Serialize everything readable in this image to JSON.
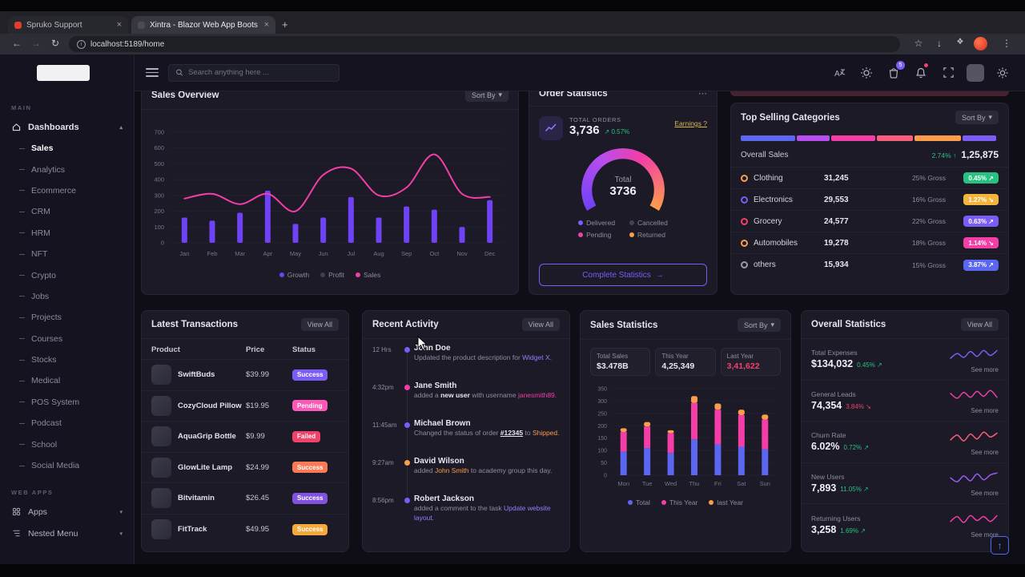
{
  "colors": {
    "accent_purple": "#7c5cf6",
    "bar_purple": "#6f42f5",
    "indigo": "#5b67f1",
    "pink": "#f23ea6",
    "orange": "#fb9d4b",
    "amber": "#f5b43c",
    "green": "#27c281",
    "red": "#f0426b",
    "earnings_yellow": "#d9b64a"
  },
  "browser": {
    "tab1": "Spruko Support",
    "tab2": "Xintra - Blazor Web App Boots",
    "url": "localhost:5189/home"
  },
  "topbar": {
    "search_placeholder": "Search anything here ...",
    "cart_badge": "5"
  },
  "sidebar": {
    "section_main": "MAIN",
    "section_webapps": "WEB APPS",
    "dashboards": "Dashboards",
    "items": [
      "Sales",
      "Analytics",
      "Ecommerce",
      "CRM",
      "HRM",
      "NFT",
      "Crypto",
      "Jobs",
      "Projects",
      "Courses",
      "Stocks",
      "Medical",
      "POS System",
      "Podcast",
      "School",
      "Social Media"
    ],
    "apps": "Apps",
    "nested_menu": "Nested Menu"
  },
  "sales_overview": {
    "title": "Sales Overview",
    "menu_label": "Sort By",
    "legend": [
      {
        "label": "Growth",
        "color": "#6f42f5"
      },
      {
        "label": "Profit",
        "color": "#3f3e52"
      },
      {
        "label": "Sales",
        "color": "#f23ea6"
      }
    ],
    "chart": {
      "type": "combo",
      "categories": [
        "Jan",
        "Feb",
        "Mar",
        "Apr",
        "May",
        "Jun",
        "Jul",
        "Aug",
        "Sep",
        "Oct",
        "Nov",
        "Dec"
      ],
      "bars": [
        160,
        140,
        190,
        330,
        120,
        160,
        290,
        160,
        230,
        210,
        100,
        270
      ],
      "line": [
        280,
        310,
        245,
        310,
        200,
        430,
        470,
        300,
        350,
        560,
        310,
        290
      ],
      "ylim": [
        0,
        700
      ],
      "yticks": [
        0,
        100,
        200,
        300,
        400,
        500,
        600,
        700
      ],
      "bar_color": "#6f42f5",
      "line_color": "#f23ea6"
    }
  },
  "order_statistics": {
    "title": "Order Statistics",
    "total_orders_label": "TOTAL ORDERS",
    "total_orders": "3,736",
    "delta": "↗ 0.57%",
    "earnings_link": "Earnings ?",
    "gauge_label": "Total",
    "gauge_value": "3736",
    "legend": [
      {
        "label": "Delivered",
        "color": "#7c5cf6"
      },
      {
        "label": "Cancelled",
        "color": "#43425a"
      },
      {
        "label": "Pending",
        "color": "#f23ea6"
      },
      {
        "label": "Returned",
        "color": "#fb9d4b"
      }
    ],
    "button_label": "Complete Statistics",
    "button_arrow": "→"
  },
  "top_selling": {
    "title": "Top Selling Categories",
    "sort_by": "Sort By",
    "overall_label": "Overall Sales",
    "overall_delta": "2.74% ↑",
    "overall_value": "1,25,875",
    "bar_segments": [
      {
        "color": "#5b67f1",
        "width": "21%"
      },
      {
        "color": "#b84df0",
        "width": "13%"
      },
      {
        "color": "#f23ea6",
        "width": "17%"
      },
      {
        "color": "#fb5d7d",
        "width": "14%"
      },
      {
        "color": "#fb9d4b",
        "width": "18%"
      },
      {
        "color": "#7c5cf6",
        "width": "13%"
      }
    ],
    "rows": [
      {
        "name": "Clothing",
        "value": "31,245",
        "gross": "25% Gross",
        "badge": "0.45% ↗",
        "badge_color": "#27c281",
        "ring_color": "#fb9d4b"
      },
      {
        "name": "Electronics",
        "value": "29,553",
        "gross": "16% Gross",
        "badge": "1.27% ↘",
        "badge_color": "#f5b43c",
        "ring_color": "#7c5cf6"
      },
      {
        "name": "Grocery",
        "value": "24,577",
        "gross": "22% Gross",
        "badge": "0.63% ↗",
        "badge_color": "#7c5cf6",
        "ring_color": "#f0426b"
      },
      {
        "name": "Automobiles",
        "value": "19,278",
        "gross": "18% Gross",
        "badge": "1.14% ↘",
        "badge_color": "#f23ea6",
        "ring_color": "#fb9d4b"
      },
      {
        "name": "others",
        "value": "15,934",
        "gross": "15% Gross",
        "badge": "3.87% ↗",
        "badge_color": "#5b67f1",
        "ring_color": "#9b9aa8"
      }
    ]
  },
  "transactions": {
    "title": "Latest Transactions",
    "view_all": "View All",
    "columns": [
      "Product",
      "Price",
      "Status"
    ],
    "rows": [
      {
        "name": "SwiftBuds",
        "price": "$39.99",
        "status": "Success",
        "badge_color": "#7c5cf6"
      },
      {
        "name": "CozyCloud Pillow",
        "price": "$19.95",
        "status": "Pending",
        "badge_color": "#fd57b7"
      },
      {
        "name": "AquaGrip Bottle",
        "price": "$9.99",
        "status": "Failed",
        "badge_color": "#f0426b"
      },
      {
        "name": "GlowLite Lamp",
        "price": "$24.99",
        "status": "Success",
        "badge_color": "#fb7a55"
      },
      {
        "name": "Bitvitamin",
        "price": "$26.45",
        "status": "Success",
        "badge_color": "#8152e0"
      },
      {
        "name": "FitTrack",
        "price": "$49.95",
        "status": "Success",
        "badge_color": "#f5a93c"
      }
    ]
  },
  "activity": {
    "title": "Recent Activity",
    "view_all": "View All",
    "items": [
      {
        "time": "12 Hrs",
        "name": "John Doe",
        "t1": "Updated the product description for ",
        "hl": "Widget X.",
        "hl_color": "#9b7bff",
        "dot_color": "#7c5cf6"
      },
      {
        "time": "4:32pm",
        "name": "Jane Smith",
        "t1": "added a ",
        "strong": "new user",
        "t2": " with username ",
        "hl": "janesmith89.",
        "hl_color": "#f23ea6",
        "dot_color": "#f23ea6"
      },
      {
        "time": "11:45am",
        "name": "Michael Brown",
        "t1": "Changed the status of order ",
        "link": "#12345",
        "t2": " to ",
        "hl": "Shipped.",
        "hl_color": "#fb9d4b",
        "dot_color": "#7c5cf6"
      },
      {
        "time": "9:27am",
        "name": "David Wilson",
        "t1": "added ",
        "hl": "John Smith",
        "hl_color": "#fb9d4b",
        "t2": " to academy group this day.",
        "dot_color": "#fb9d4b"
      },
      {
        "time": "8:56pm",
        "name": "Robert Jackson",
        "t1": "added a comment to the task ",
        "hl": "Update website layout.",
        "hl_color": "#9b7bff",
        "dot_color": "#7c5cf6"
      }
    ]
  },
  "sales_statistics": {
    "title": "Sales Statistics",
    "sort_by": "Sort By",
    "boxes": [
      {
        "label": "Total Sales",
        "value": "$3.478B",
        "value_color": "#e6e5f0"
      },
      {
        "label": "This Year",
        "value": "4,25,349",
        "value_color": "#e6e5f0"
      },
      {
        "label": "Last Year",
        "value": "3,41,622",
        "value_color": "#f0426b"
      }
    ],
    "legend": [
      {
        "label": "Total",
        "color": "#5b67f1"
      },
      {
        "label": "This Year",
        "color": "#f23ea6"
      },
      {
        "label": "last Year",
        "color": "#fb9d4b"
      }
    ],
    "chart": {
      "type": "stacked-bar",
      "categories": [
        "Mon",
        "Tue",
        "Wed",
        "Thu",
        "Fri",
        "Sat",
        "Sun"
      ],
      "ylim": [
        0,
        350
      ],
      "yticks": [
        0,
        50,
        100,
        150,
        200,
        250,
        300,
        350
      ],
      "series": [
        {
          "name": "Total",
          "color": "#5b67f1",
          "values": [
            95,
            110,
            90,
            145,
            125,
            115,
            105
          ]
        },
        {
          "name": "This Year",
          "color": "#f23ea6",
          "values": [
            80,
            87,
            80,
            147,
            140,
            128,
            120
          ]
        },
        {
          "name": "last Year",
          "color": "#fb9d4b",
          "values": [
            15,
            18,
            12,
            28,
            25,
            22,
            20
          ]
        }
      ]
    }
  },
  "overall_statistics": {
    "title": "Overall Statistics",
    "view_all": "View All",
    "rows": [
      {
        "label": "Total Expenses",
        "value": "$134,032",
        "delta": "0.45% ↗",
        "delta_color": "#27c281",
        "see_more": "See more",
        "spark": [
          4,
          9,
          5,
          11,
          6,
          12,
          7,
          12
        ],
        "spark_color": "#7c5cf6"
      },
      {
        "label": "General Leads",
        "value": "74,354",
        "delta": "3.84% ↘",
        "delta_color": "#f0426b",
        "see_more": "See more",
        "spark": [
          10,
          5,
          11,
          6,
          12,
          7,
          13,
          6
        ],
        "spark_color": "#f23ea6"
      },
      {
        "label": "Churn Rate",
        "value": "6.02%",
        "delta": "0.72% ↗",
        "delta_color": "#27c281",
        "see_more": "See more",
        "spark": [
          5,
          10,
          4,
          11,
          6,
          13,
          8,
          12
        ],
        "spark_color": "#fb5d7d"
      },
      {
        "label": "New Users",
        "value": "7,893",
        "delta": "11.05% ↗",
        "delta_color": "#27c281",
        "see_more": "See more",
        "spark": [
          8,
          4,
          10,
          5,
          12,
          6,
          11,
          13
        ],
        "spark_color": "#9b5cf6"
      },
      {
        "label": "Returning Users",
        "value": "3,258",
        "delta": "1.69% ↗",
        "delta_color": "#27c281",
        "see_more": "See more",
        "spark": [
          6,
          11,
          5,
          12,
          7,
          11,
          6,
          12
        ],
        "spark_color": "#f23ea6"
      }
    ]
  },
  "scroll_top_icon": "↑"
}
